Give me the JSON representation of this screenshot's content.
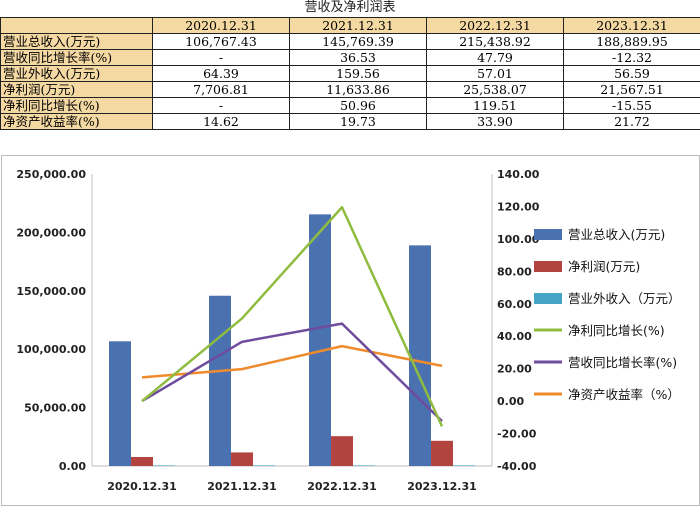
{
  "title": "营收及净利润表",
  "table": {
    "headers": [
      "",
      "2020.12.31",
      "2021.12.31",
      "2022.12.31",
      "2023.12.31"
    ],
    "rows": [
      {
        "label": "营业总收入(万元)",
        "values": [
          "106,767.43",
          "145,769.39",
          "215,438.92",
          "188,889.95"
        ]
      },
      {
        "label": "营收同比增长率(%)",
        "values": [
          "-",
          "36.53",
          "47.79",
          "-12.32"
        ]
      },
      {
        "label": "营业外收入(万元)",
        "values": [
          "64.39",
          "159.56",
          "57.01",
          "56.59"
        ]
      },
      {
        "label": "净利润(万元)",
        "values": [
          "7,706.81",
          "11,633.86",
          "25,538.07",
          "21,567.51"
        ]
      },
      {
        "label": "净利同比增长(%)",
        "values": [
          "-",
          "50.96",
          "119.51",
          "-15.55"
        ]
      },
      {
        "label": "净资产收益率(%)",
        "values": [
          "14.62",
          "19.73",
          "33.90",
          "21.72"
        ]
      }
    ]
  },
  "chart_data": {
    "type": "bar",
    "categories": [
      "2020.12.31",
      "2021.12.31",
      "2022.12.31",
      "2023.12.31"
    ],
    "left_axis": {
      "ylim": [
        0,
        250000
      ],
      "ticks": [
        0,
        50000,
        100000,
        150000,
        200000,
        250000
      ],
      "tick_labels": [
        "0.00",
        "50,000.00",
        "100,000.00",
        "150,000.00",
        "200,000.00",
        "250,000.00"
      ]
    },
    "right_axis": {
      "ylim": [
        -40,
        140
      ],
      "ticks": [
        -40,
        -20,
        0,
        20,
        40,
        60,
        80,
        100,
        120,
        140
      ],
      "tick_labels": [
        "-40.00",
        "-20.00",
        "0.00",
        "20.00",
        "40.00",
        "60.00",
        "80.00",
        "100.00",
        "120.00",
        "140.00"
      ]
    },
    "bar_series": [
      {
        "name": "营业总收入(万元)",
        "color": "#4a72b0",
        "values": [
          106767.43,
          145769.39,
          215438.92,
          188889.95
        ]
      },
      {
        "name": "净利润(万元)",
        "color": "#b3433e",
        "values": [
          7706.81,
          11633.86,
          25538.07,
          21567.51
        ]
      },
      {
        "name": "营业外收入（万元）",
        "color": "#44a5c6",
        "values": [
          64.39,
          159.56,
          57.01,
          56.59
        ]
      }
    ],
    "line_series": [
      {
        "name": "净利同比增长(%)",
        "color": "#8fbc3f",
        "values": [
          0,
          50.96,
          119.51,
          -15.55
        ]
      },
      {
        "name": "营收同比增长率(%)",
        "color": "#6e4b9c",
        "values": [
          0,
          36.53,
          47.79,
          -12.32
        ]
      },
      {
        "name": "净资产收益率（%）",
        "color": "#ef8b2c",
        "values": [
          14.62,
          19.73,
          33.9,
          21.72
        ]
      }
    ],
    "legend_position": "right"
  }
}
